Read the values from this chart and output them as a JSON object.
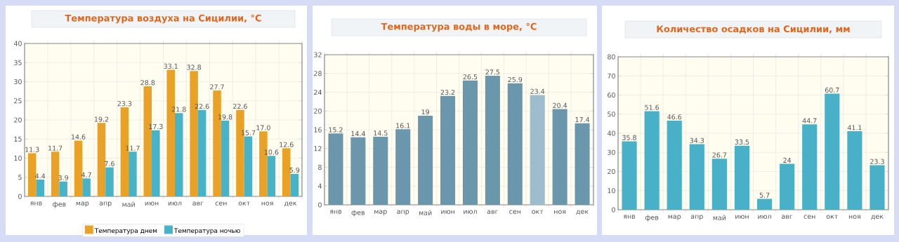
{
  "chart_data": [
    {
      "type": "bar",
      "title": "Температура воздуха на Сицилии, °C",
      "categories": [
        "янв",
        "фев",
        "мар",
        "апр",
        "май",
        "июн",
        "июл",
        "авг",
        "сен",
        "окт",
        "ноя",
        "дек"
      ],
      "series": [
        {
          "name": "Температура днем",
          "color": "#e9a126",
          "values": [
            11.3,
            11.7,
            14.6,
            19.2,
            23.3,
            28.8,
            33.1,
            32.8,
            27.7,
            22.6,
            17.0,
            12.6
          ],
          "value_labels": [
            "11.3",
            "11.7",
            "14.6",
            "19.2",
            "23.3",
            "28.8",
            "33.1",
            "32.8",
            "27.7",
            "22.6",
            "17.0",
            "12.6"
          ]
        },
        {
          "name": "Температура ночью",
          "color": "#48b2c6",
          "values": [
            4.4,
            3.9,
            4.7,
            7.6,
            11.7,
            17.3,
            21.8,
            22.6,
            19.8,
            15.7,
            10.6,
            5.9
          ],
          "value_labels": [
            "4.4",
            "3.9",
            "4.7",
            "7.6",
            "11.7",
            "17.3",
            "21.8",
            "22.6",
            "19.8",
            "15.7",
            "10.6",
            "5.9"
          ]
        }
      ],
      "ylim": [
        0,
        40
      ],
      "yticks": [
        0,
        5,
        10,
        15,
        20,
        25,
        30,
        35,
        40
      ],
      "grid": true,
      "legend": "bottom"
    },
    {
      "type": "bar",
      "title": "Температура воды в море, °C",
      "categories": [
        "янв",
        "фев",
        "мар",
        "апр",
        "май",
        "июн",
        "июл",
        "авг",
        "сен",
        "окт",
        "ноя",
        "дек"
      ],
      "values": [
        15.2,
        14.4,
        14.5,
        16.1,
        19,
        23.2,
        26.5,
        27.5,
        25.9,
        23.4,
        20.4,
        17.4
      ],
      "colors": [
        "#6b97ac",
        "#6b97ac",
        "#6b97ac",
        "#6b97ac",
        "#6b97ac",
        "#6b97ac",
        "#6b97ac",
        "#6b97ac",
        "#6b97ac",
        "#9dbdcd",
        "#6b97ac",
        "#6b97ac"
      ],
      "data_labels": true,
      "ylim": [
        0,
        32
      ],
      "yticks": [
        0,
        4,
        8,
        12,
        16,
        20,
        24,
        28,
        32
      ],
      "grid": true
    },
    {
      "type": "bar",
      "title": "Количество осадков на Сицилии, мм",
      "categories": [
        "янв",
        "фев",
        "мар",
        "апр",
        "май",
        "июн",
        "июл",
        "авг",
        "сен",
        "окт",
        "ноя",
        "дек"
      ],
      "values": [
        35.8,
        51.6,
        46.6,
        34.3,
        26.7,
        33.5,
        5.7,
        24,
        44.7,
        60.7,
        41.1,
        23.3
      ],
      "color": "#49b1c7",
      "data_labels": true,
      "ylim": [
        0,
        80
      ],
      "yticks": [
        0,
        10,
        20,
        30,
        40,
        50,
        60,
        70,
        80
      ],
      "grid": true
    }
  ]
}
